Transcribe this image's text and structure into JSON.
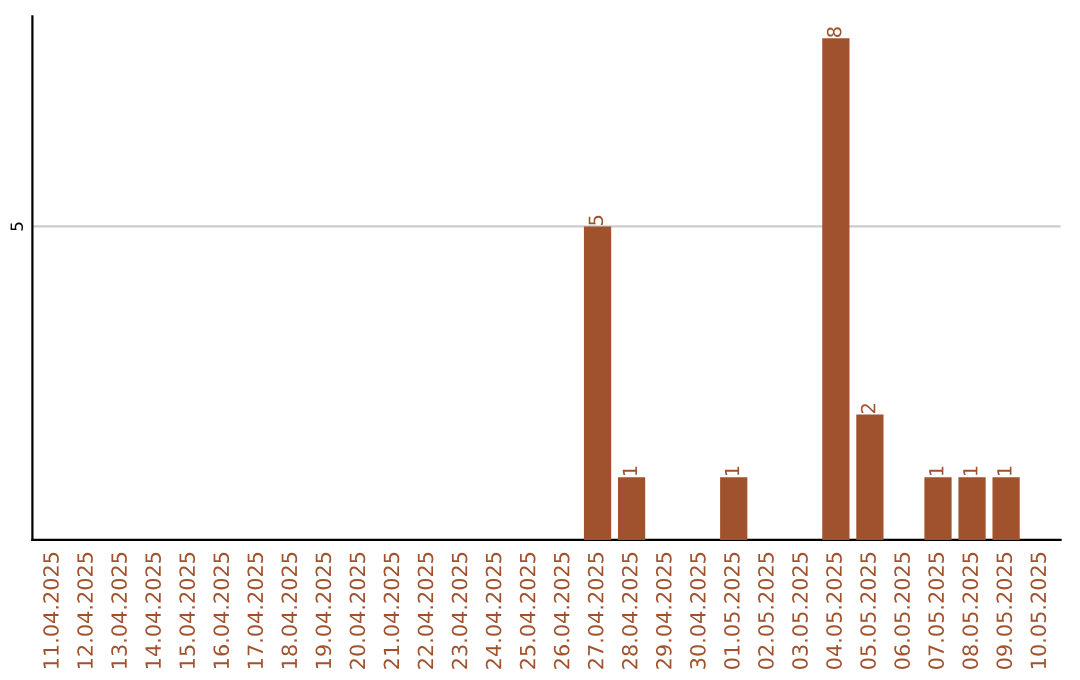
{
  "chart_data": {
    "type": "bar",
    "categories": [
      "11.04.2025",
      "12.04.2025",
      "13.04.2025",
      "14.04.2025",
      "15.04.2025",
      "16.04.2025",
      "17.04.2025",
      "18.04.2025",
      "19.04.2025",
      "20.04.2025",
      "21.04.2025",
      "22.04.2025",
      "23.04.2025",
      "24.04.2025",
      "25.04.2025",
      "26.04.2025",
      "27.04.2025",
      "28.04.2025",
      "29.04.2025",
      "30.04.2025",
      "01.05.2025",
      "02.05.2025",
      "03.05.2025",
      "04.05.2025",
      "05.05.2025",
      "06.05.2025",
      "07.05.2025",
      "08.05.2025",
      "09.05.2025",
      "10.05.2025"
    ],
    "values": [
      null,
      null,
      null,
      null,
      null,
      null,
      null,
      null,
      null,
      null,
      null,
      null,
      null,
      null,
      null,
      null,
      5,
      1,
      null,
      null,
      1,
      null,
      null,
      8,
      2,
      null,
      1,
      1,
      1,
      null
    ],
    "ylim": [
      0,
      8.35
    ],
    "value_labels": [
      null,
      null,
      null,
      null,
      null,
      null,
      null,
      null,
      null,
      null,
      null,
      null,
      null,
      null,
      null,
      null,
      "5",
      "1",
      null,
      null,
      "1",
      null,
      null,
      "8",
      "2",
      null,
      "1",
      "1",
      "1",
      null
    ],
    "color": "#a0522d",
    "ref_lines": [
      {
        "axis": "y",
        "value": 5,
        "label": "5",
        "color": "#cccccc"
      }
    ]
  }
}
